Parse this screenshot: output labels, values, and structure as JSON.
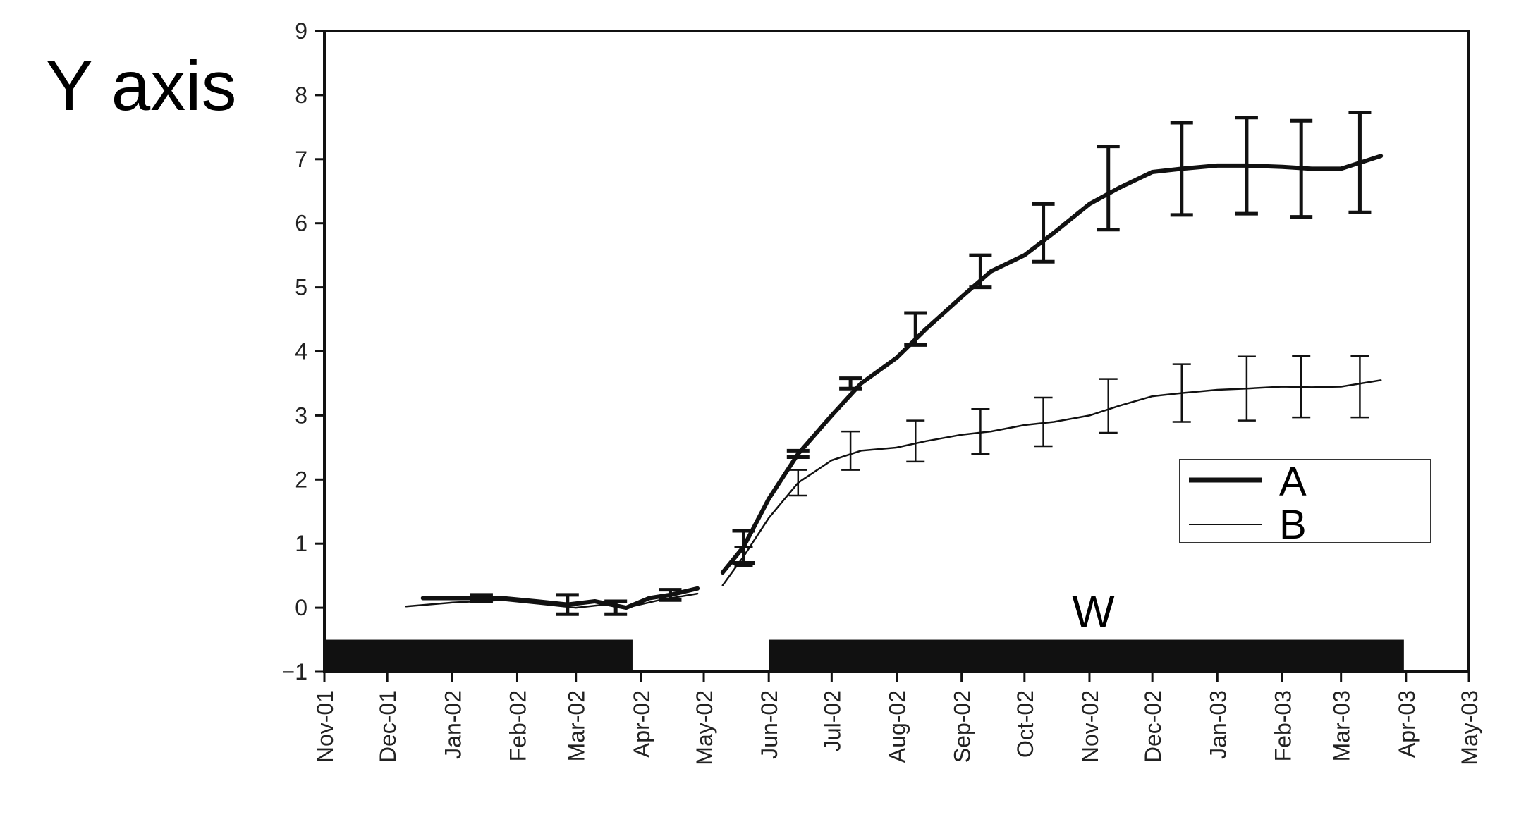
{
  "chart_data": {
    "type": "line",
    "ylabel": "Y axis",
    "xlabel": "",
    "ylim": [
      -1,
      9
    ],
    "yticks": [
      -1,
      0,
      1,
      2,
      3,
      4,
      5,
      6,
      7,
      8,
      9
    ],
    "ytick_labels": [
      "−1",
      "0",
      "1",
      "2",
      "3",
      "4",
      "5",
      "6",
      "7",
      "8",
      "9"
    ],
    "xlim": [
      "2001-11-01",
      "2003-05-01"
    ],
    "x_tick_labels": [
      "Nov-01",
      "Dec-01",
      "Jan-02",
      "Feb-02",
      "Mar-02",
      "Apr-02",
      "May-02",
      "Jun-02",
      "Jul-02",
      "Aug-02",
      "Sep-02",
      "Oct-02",
      "Nov-02",
      "Dec-02",
      "Jan-03",
      "Feb-03",
      "Mar-03",
      "Apr-03",
      "May-03"
    ],
    "grid": false,
    "legend_position": "right",
    "series": [
      {
        "name": "A",
        "style": "thick",
        "segments": [
          [
            [
              "2001-12-18",
              0.15
            ],
            [
              "2002-01-05",
              0.15
            ],
            [
              "2002-01-25",
              0.15
            ],
            [
              "2002-02-10",
              0.1
            ],
            [
              "2002-02-25",
              0.05
            ],
            [
              "2002-03-10",
              0.1
            ],
            [
              "2002-03-25",
              0.0
            ],
            [
              "2002-04-05",
              0.15
            ],
            [
              "2002-04-15",
              0.2
            ],
            [
              "2002-04-28",
              0.3
            ]
          ],
          [
            [
              "2002-05-10",
              0.55
            ],
            [
              "2002-05-20",
              0.95
            ],
            [
              "2002-06-01",
              1.7
            ],
            [
              "2002-06-15",
              2.4
            ],
            [
              "2002-07-01",
              3.0
            ],
            [
              "2002-07-15",
              3.5
            ],
            [
              "2002-08-01",
              3.9
            ],
            [
              "2002-08-15",
              4.35
            ],
            [
              "2002-09-01",
              4.85
            ],
            [
              "2002-09-15",
              5.25
            ],
            [
              "2002-10-01",
              5.5
            ],
            [
              "2002-10-15",
              5.85
            ],
            [
              "2002-11-01",
              6.3
            ],
            [
              "2002-11-15",
              6.55
            ],
            [
              "2002-12-01",
              6.8
            ],
            [
              "2002-12-15",
              6.85
            ],
            [
              "2003-01-01",
              6.9
            ],
            [
              "2003-01-15",
              6.9
            ],
            [
              "2003-02-01",
              6.88
            ],
            [
              "2003-02-15",
              6.85
            ],
            [
              "2003-03-01",
              6.85
            ],
            [
              "2003-03-20",
              7.05
            ]
          ]
        ],
        "error_bars": [
          [
            "2002-01-15",
            0.15,
            0.05
          ],
          [
            "2002-02-25",
            0.05,
            0.15
          ],
          [
            "2002-03-20",
            0.0,
            0.1
          ],
          [
            "2002-04-15",
            0.2,
            0.08
          ],
          [
            "2002-05-20",
            0.95,
            0.25
          ],
          [
            "2002-06-15",
            2.4,
            0.05
          ],
          [
            "2002-07-10",
            3.5,
            0.08
          ],
          [
            "2002-08-10",
            4.35,
            0.25
          ],
          [
            "2002-09-10",
            5.25,
            0.25
          ],
          [
            "2002-10-10",
            5.85,
            0.45
          ],
          [
            "2002-11-10",
            6.55,
            0.65
          ],
          [
            "2002-12-15",
            6.85,
            0.72
          ],
          [
            "2003-01-15",
            6.9,
            0.75
          ],
          [
            "2003-02-10",
            6.85,
            0.75
          ],
          [
            "2003-03-10",
            6.95,
            0.78
          ]
        ]
      },
      {
        "name": "B",
        "style": "thin",
        "segments": [
          [
            [
              "2001-12-10",
              0.02
            ],
            [
              "2002-01-01",
              0.08
            ],
            [
              "2002-01-25",
              0.12
            ],
            [
              "2002-02-15",
              0.05
            ],
            [
              "2002-03-01",
              0.0
            ],
            [
              "2002-03-15",
              0.05
            ],
            [
              "2002-03-25",
              0.0
            ],
            [
              "2002-04-10",
              0.12
            ],
            [
              "2002-04-28",
              0.22
            ]
          ],
          [
            [
              "2002-05-10",
              0.35
            ],
            [
              "2002-05-20",
              0.8
            ],
            [
              "2002-06-01",
              1.4
            ],
            [
              "2002-06-15",
              1.95
            ],
            [
              "2002-07-01",
              2.3
            ],
            [
              "2002-07-15",
              2.45
            ],
            [
              "2002-08-01",
              2.5
            ],
            [
              "2002-08-15",
              2.6
            ],
            [
              "2002-09-01",
              2.7
            ],
            [
              "2002-09-15",
              2.75
            ],
            [
              "2002-10-01",
              2.85
            ],
            [
              "2002-10-15",
              2.9
            ],
            [
              "2002-11-01",
              3.0
            ],
            [
              "2002-11-15",
              3.15
            ],
            [
              "2002-12-01",
              3.3
            ],
            [
              "2002-12-15",
              3.35
            ],
            [
              "2003-01-01",
              3.4
            ],
            [
              "2003-01-15",
              3.42
            ],
            [
              "2003-02-01",
              3.45
            ],
            [
              "2003-02-15",
              3.44
            ],
            [
              "2003-03-01",
              3.45
            ],
            [
              "2003-03-20",
              3.55
            ]
          ]
        ],
        "error_bars": [
          [
            "2002-05-20",
            0.8,
            0.15
          ],
          [
            "2002-06-15",
            1.95,
            0.2
          ],
          [
            "2002-07-10",
            2.45,
            0.3
          ],
          [
            "2002-08-10",
            2.6,
            0.32
          ],
          [
            "2002-09-10",
            2.75,
            0.35
          ],
          [
            "2002-10-10",
            2.9,
            0.38
          ],
          [
            "2002-11-10",
            3.15,
            0.42
          ],
          [
            "2002-12-15",
            3.35,
            0.45
          ],
          [
            "2003-01-15",
            3.42,
            0.5
          ],
          [
            "2003-02-10",
            3.45,
            0.48
          ],
          [
            "2003-03-10",
            3.45,
            0.48
          ]
        ]
      }
    ],
    "bands": [
      {
        "start": "2001-11-01",
        "end": "2002-03-28",
        "label": ""
      },
      {
        "start": "2002-06-01",
        "end": "2003-03-31",
        "label": "W"
      }
    ]
  }
}
